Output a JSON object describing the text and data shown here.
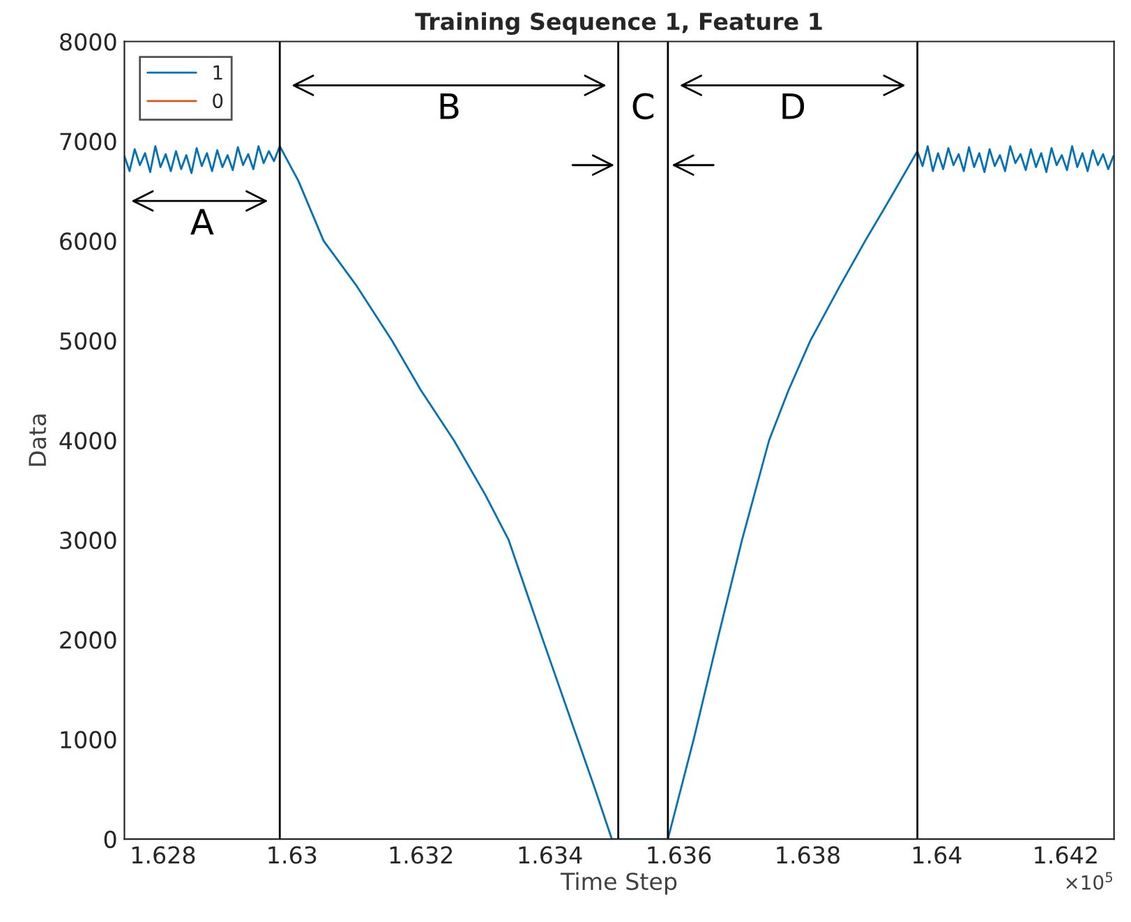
{
  "chart_data": {
    "type": "line",
    "title": "Training Sequence 1, Feature 1",
    "xlabel": "Time Step",
    "ylabel": "Data",
    "series": [
      {
        "name": "1",
        "color": "#0072bd",
        "x": [
          1.6274,
          1.62748,
          1.62756,
          1.62764,
          1.62772,
          1.6278,
          1.62788,
          1.62796,
          1.62804,
          1.62812,
          1.6282,
          1.62828,
          1.62836,
          1.62844,
          1.62852,
          1.6286,
          1.62868,
          1.62876,
          1.62884,
          1.62892,
          1.629,
          1.62908,
          1.62916,
          1.62924,
          1.62932,
          1.6294,
          1.62948,
          1.62956,
          1.62964,
          1.62972,
          1.62981,
          1.6301,
          1.63049,
          1.631,
          1.63155,
          1.632,
          1.63251,
          1.633,
          1.63336,
          1.63389,
          1.63443,
          1.6347,
          1.63496,
          1.6354,
          1.63583,
          1.63623,
          1.6366,
          1.63698,
          1.6374,
          1.6377,
          1.63804,
          1.6385,
          1.63889,
          1.6393,
          1.6397,
          1.63978,
          1.63986,
          1.63994,
          1.64002,
          1.6401,
          1.64018,
          1.64026,
          1.64034,
          1.64042,
          1.6405,
          1.64058,
          1.64066,
          1.64074,
          1.64082,
          1.6409,
          1.64098,
          1.64106,
          1.64114,
          1.64122,
          1.6413,
          1.64138,
          1.64146,
          1.64154,
          1.64162,
          1.6417,
          1.64178,
          1.64186,
          1.64194,
          1.64202,
          1.6421,
          1.64218,
          1.64226,
          1.64234,
          1.64242,
          1.6425,
          1.64258,
          1.64266,
          1.64274
        ],
        "values": [
          6850,
          6700,
          6920,
          6760,
          6880,
          6690,
          6950,
          6740,
          6870,
          6700,
          6900,
          6720,
          6860,
          6680,
          6930,
          6750,
          6880,
          6700,
          6910,
          6740,
          6860,
          6710,
          6940,
          6760,
          6870,
          6720,
          6950,
          6780,
          6900,
          6800,
          6950,
          6600,
          6000,
          5550,
          5000,
          4500,
          4000,
          3450,
          3000,
          2000,
          1000,
          500,
          0,
          0,
          0,
          1000,
          2000,
          3000,
          4000,
          4500,
          5000,
          5550,
          6000,
          6450,
          6900,
          6750,
          6950,
          6700,
          6880,
          6720,
          6930,
          6760,
          6870,
          6700,
          6940,
          6740,
          6880,
          6690,
          6920,
          6750,
          6860,
          6700,
          6950,
          6780,
          6870,
          6710,
          6920,
          6740,
          6880,
          6690,
          6930,
          6760,
          6860,
          6710,
          6950,
          6740,
          6880,
          6700,
          6910,
          6760,
          6870,
          6720,
          6850
        ]
      },
      {
        "name": "0",
        "color": "#d95319"
      }
    ],
    "xlim": [
      1.6274,
      1.64275
    ],
    "ylim": [
      0,
      8000
    ],
    "xticks": [
      1.628,
      1.63,
      1.632,
      1.634,
      1.636,
      1.638,
      1.64,
      1.642
    ],
    "yticks": [
      0,
      1000,
      2000,
      3000,
      4000,
      5000,
      6000,
      7000,
      8000
    ],
    "ref_lines": [
      {
        "axis": "x",
        "value": 1.62981,
        "color": "#000000"
      },
      {
        "axis": "x",
        "value": 1.63506,
        "color": "#000000"
      },
      {
        "axis": "x",
        "value": 1.63583,
        "color": "#000000"
      },
      {
        "axis": "x",
        "value": 1.6397,
        "color": "#000000"
      }
    ],
    "annotations": [
      "A",
      "B",
      "C",
      "D",
      "×10$^{5}$"
    ],
    "grid": false,
    "legend": "top left",
    "line_style": "solid",
    "marker": "none"
  }
}
